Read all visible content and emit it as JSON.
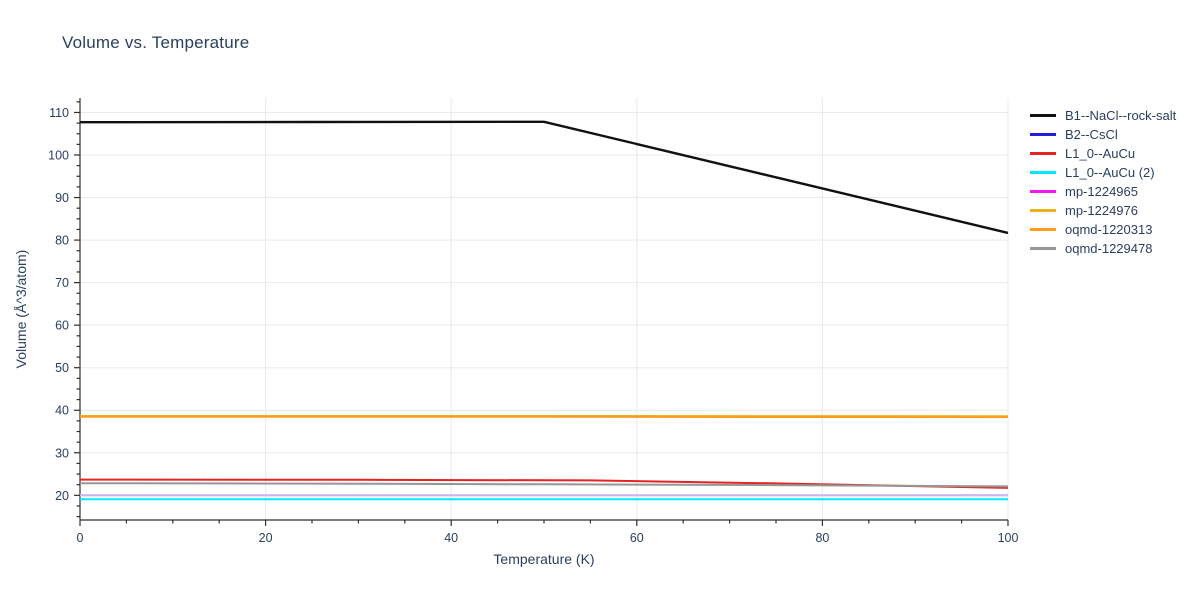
{
  "title": "Volume vs. Temperature",
  "chart_data": {
    "type": "line",
    "title": "Volume vs. Temperature",
    "xlabel": "Temperature (K)",
    "ylabel": "Volume (Å^3/atom)",
    "xlim": [
      0,
      100
    ],
    "ylim": [
      14.2,
      113.4
    ],
    "xticks": [
      0,
      20,
      40,
      60,
      80,
      100
    ],
    "yticks": [
      20,
      30,
      40,
      50,
      60,
      70,
      80,
      90,
      100,
      110
    ],
    "x_minor_step": 5,
    "y_minor_step": 2.5,
    "grid": true,
    "legend_position": "right",
    "text_color": "#2a3f5f",
    "grid_color": "#e9e9f0",
    "axis_color": "#2f2f2f",
    "background_color": "#ffffff",
    "series": [
      {
        "name": "B1--NaCl--rock-salt",
        "color": "#111111",
        "points": [
          [
            0,
            107.7
          ],
          [
            25,
            107.75
          ],
          [
            50,
            107.8
          ],
          [
            100,
            81.7
          ]
        ]
      },
      {
        "name": "B2--CsCl",
        "color": "#2020d8",
        "plot_color": "#b7b7ea",
        "points": [
          [
            0,
            20.0
          ],
          [
            50,
            20.0
          ],
          [
            100,
            20.0
          ]
        ]
      },
      {
        "name": "L1_0--AuCu",
        "color": "#e62222",
        "points": [
          [
            0,
            23.7
          ],
          [
            30,
            23.65
          ],
          [
            55,
            23.5
          ],
          [
            75,
            22.8
          ],
          [
            100,
            21.75
          ]
        ]
      },
      {
        "name": "L1_0--AuCu (2)",
        "color": "#00e8ff",
        "points": [
          [
            0,
            19.1
          ],
          [
            50,
            19.1
          ],
          [
            100,
            19.1
          ]
        ]
      },
      {
        "name": "mp-1224965",
        "color": "#f318f3",
        "plot_color": "#cbb7ee",
        "points": [
          [
            0,
            20.0
          ],
          [
            50,
            20.0
          ],
          [
            100,
            20.0
          ]
        ]
      },
      {
        "name": "mp-1224976",
        "color": "#eab31d",
        "points": [
          [
            0,
            38.65
          ],
          [
            50,
            38.65
          ],
          [
            100,
            38.6
          ]
        ]
      },
      {
        "name": "oqmd-1220313",
        "color": "#fe9c1e",
        "points": [
          [
            0,
            38.45
          ],
          [
            50,
            38.45
          ],
          [
            100,
            38.4
          ]
        ]
      },
      {
        "name": "oqmd-1229478",
        "color": "#969696",
        "points": [
          [
            0,
            22.85
          ],
          [
            25,
            22.75
          ],
          [
            50,
            22.6
          ],
          [
            75,
            22.4
          ],
          [
            100,
            22.1
          ]
        ]
      }
    ]
  }
}
